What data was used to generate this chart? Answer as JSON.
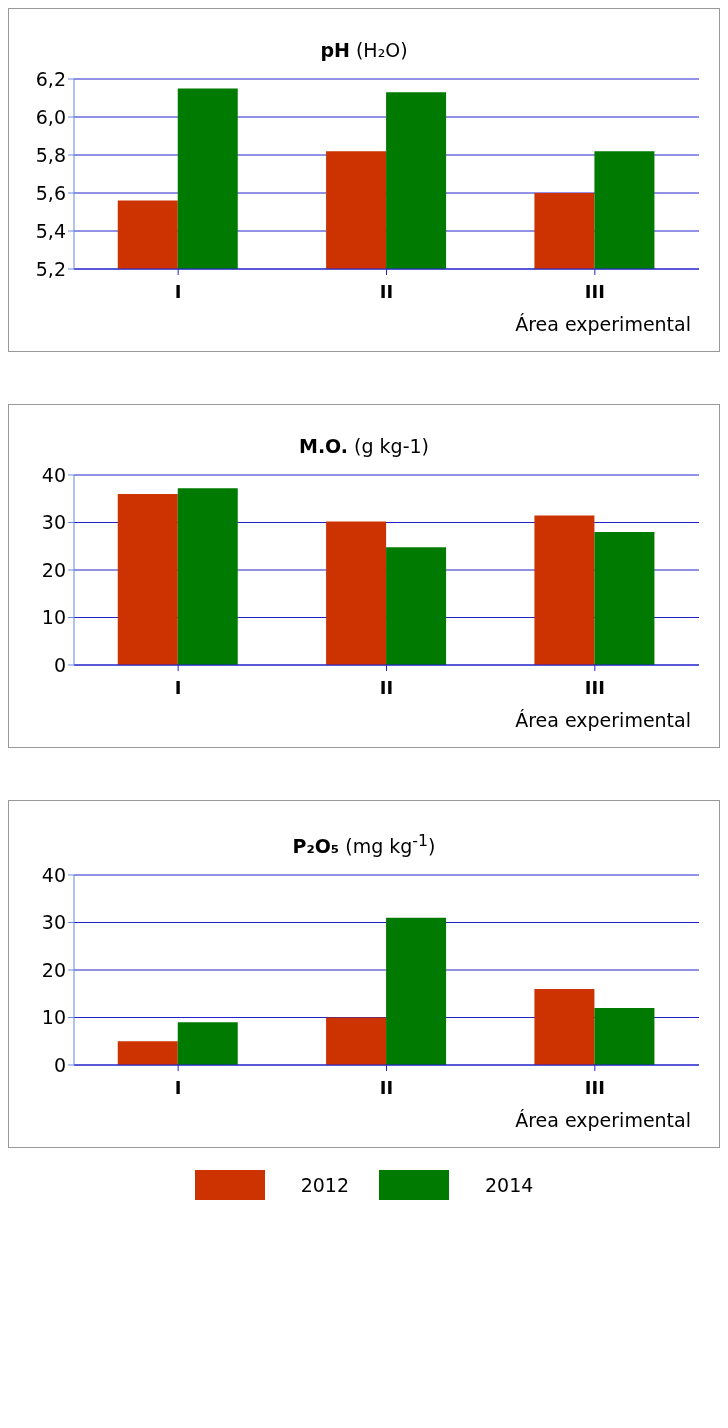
{
  "chart_data": [
    {
      "type": "bar",
      "title": "pH (H₂O)",
      "xlabel": "Área experimental",
      "categories": [
        "I",
        "II",
        "III"
      ],
      "series": [
        {
          "color": "#cc3300",
          "values": [
            5.56,
            5.82,
            5.6
          ]
        },
        {
          "color": "#007a00",
          "values": [
            6.15,
            6.13,
            5.82
          ]
        }
      ],
      "ylim": [
        5.2,
        6.2
      ],
      "yticks": [
        {
          "value": 5.2,
          "label": "5,2"
        },
        {
          "value": 5.4,
          "label": "5,4"
        },
        {
          "value": 5.6,
          "label": "5,6"
        },
        {
          "value": 5.8,
          "label": "5,8"
        },
        {
          "value": 6.0,
          "label": "6,0"
        },
        {
          "value": 6.2,
          "label": "6,2"
        }
      ],
      "grid": "y"
    },
    {
      "type": "bar",
      "title": "M.O. (g kg-1)",
      "xlabel": "Área experimental",
      "categories": [
        "I",
        "II",
        "III"
      ],
      "series": [
        {
          "color": "#cc3300",
          "values": [
            36,
            30.2,
            31.5
          ]
        },
        {
          "color": "#007a00",
          "values": [
            37.2,
            24.8,
            28
          ]
        }
      ],
      "ylim": [
        0,
        40
      ],
      "yticks": [
        0,
        10,
        20,
        30,
        40
      ],
      "grid": "y"
    },
    {
      "type": "bar",
      "title": "P₂O₅ (mg kg$^{-1}$)",
      "xlabel": "Área experimental",
      "categories": [
        "I",
        "II",
        "III"
      ],
      "series": [
        {
          "name": "2012",
          "color": "#cc3300",
          "values": [
            5,
            10,
            16
          ]
        },
        {
          "name": "2014",
          "color": "#007a00",
          "values": [
            9,
            31,
            12
          ]
        }
      ],
      "ylim": [
        0,
        40
      ],
      "yticks": [
        0,
        10,
        20,
        30,
        40
      ],
      "grid": "y",
      "legend": "bottom"
    }
  ]
}
